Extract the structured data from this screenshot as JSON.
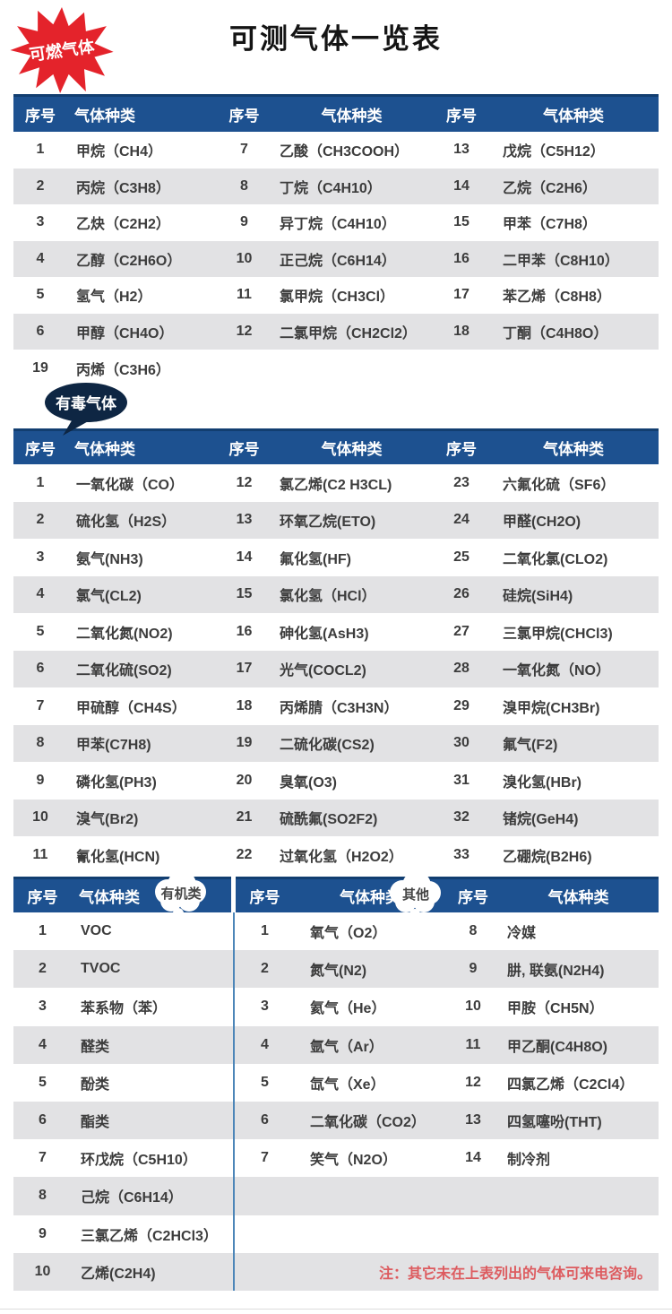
{
  "title": "可测气体一览表",
  "badges": {
    "flammable": "可燃气体",
    "toxic": "有毒气体",
    "organic": "有机类",
    "other": "其他"
  },
  "columns": {
    "index": "序号",
    "gas": "气体种类"
  },
  "colors": {
    "header_blue": "#1d5190",
    "header_border_navy": "#123e70",
    "row_alt_gray": "#e2e2e4",
    "badge_red": "#e4232b",
    "badge_navy": "#0e2643",
    "divider_blue": "#4d86b8",
    "note_red": "#dd5b5f"
  },
  "flammable_table": {
    "rows": [
      [
        "1",
        "甲烷（CH4）",
        "7",
        "乙酸（CH3COOH）",
        "13",
        "戊烷（C5H12）"
      ],
      [
        "2",
        "丙烷（C3H8）",
        "8",
        "丁烷（C4H10）",
        "14",
        "乙烷（C2H6）"
      ],
      [
        "3",
        "乙炔（C2H2）",
        "9",
        "异丁烷（C4H10）",
        "15",
        "甲苯（C7H8）"
      ],
      [
        "4",
        "乙醇（C2H6O）",
        "10",
        "正己烷（C6H14）",
        "16",
        "二甲苯（C8H10）"
      ],
      [
        "5",
        "氢气（H2）",
        "11",
        "氯甲烷（CH3Cl）",
        "17",
        "苯乙烯（C8H8）"
      ],
      [
        "6",
        "甲醇（CH4O）",
        "12",
        "二氯甲烷（CH2Cl2）",
        "18",
        "丁酮（C4H8O）"
      ]
    ],
    "extra": {
      "index": "19",
      "gas": "丙烯（C3H6）"
    }
  },
  "toxic_table": {
    "rows": [
      [
        "1",
        "一氧化碳（CO）",
        "12",
        "氯乙烯(C2 H3CL)",
        "23",
        "六氟化硫（SF6）"
      ],
      [
        "2",
        "硫化氢（H2S）",
        "13",
        "环氧乙烷(ETO)",
        "24",
        "甲醛(CH2O)"
      ],
      [
        "3",
        "氨气(NH3)",
        "14",
        "氟化氢(HF)",
        "25",
        "二氧化氯(CLO2)"
      ],
      [
        "4",
        "氯气(CL2)",
        "15",
        "氯化氢（HCl）",
        "26",
        "硅烷(SiH4)"
      ],
      [
        "5",
        "二氧化氮(NO2)",
        "16",
        "砷化氢(AsH3)",
        "27",
        "三氯甲烷(CHCl3)"
      ],
      [
        "6",
        "二氧化硫(SO2)",
        "17",
        "光气(COCL2)",
        "28",
        "一氧化氮（NO）"
      ],
      [
        "7",
        "甲硫醇（CH4S）",
        "18",
        "丙烯腈（C3H3N）",
        "29",
        "溴甲烷(CH3Br)"
      ],
      [
        "8",
        "甲苯(C7H8)",
        "19",
        "二硫化碳(CS2)",
        "30",
        "氟气(F2)"
      ],
      [
        "9",
        "磷化氢(PH3)",
        "20",
        "臭氧(O3)",
        "31",
        "溴化氢(HBr)"
      ],
      [
        "10",
        "溴气(Br2)",
        "21",
        "硫酰氟(SO2F2)",
        "32",
        "锗烷(GeH4)"
      ],
      [
        "11",
        "氰化氢(HCN)",
        "22",
        "过氧化氢（H2O2）",
        "33",
        "乙硼烷(B2H6)"
      ]
    ]
  },
  "organic_other_table": {
    "rows": [
      [
        "1",
        "VOC",
        "1",
        "氧气（O2）",
        "8",
        "冷媒"
      ],
      [
        "2",
        "TVOC",
        "2",
        "氮气(N2)",
        "9",
        "肼, 联氨(N2H4)"
      ],
      [
        "3",
        "苯系物（苯）",
        "3",
        "氦气（He）",
        "10",
        "甲胺（CH5N）"
      ],
      [
        "4",
        "醛类",
        "4",
        "氩气（Ar）",
        "11",
        "甲乙酮(C4H8O)"
      ],
      [
        "5",
        "酚类",
        "5",
        "氙气（Xe）",
        "12",
        "四氯乙烯（C2Cl4）"
      ],
      [
        "6",
        "酯类",
        "6",
        "二氧化碳（CO2）",
        "13",
        "四氢噻吩(THT)"
      ],
      [
        "7",
        "环戊烷（C5H10）",
        "7",
        "笑气（N2O）",
        "14",
        "制冷剂"
      ],
      [
        "8",
        "己烷（C6H14）",
        "",
        "",
        "",
        ""
      ],
      [
        "9",
        "三氯乙烯（C2HCl3）",
        "",
        "",
        "",
        ""
      ],
      [
        "10",
        "乙烯(C2H4)",
        "",
        "",
        "",
        ""
      ]
    ]
  },
  "note": "注：其它未在上表列出的气体可来电咨询。"
}
